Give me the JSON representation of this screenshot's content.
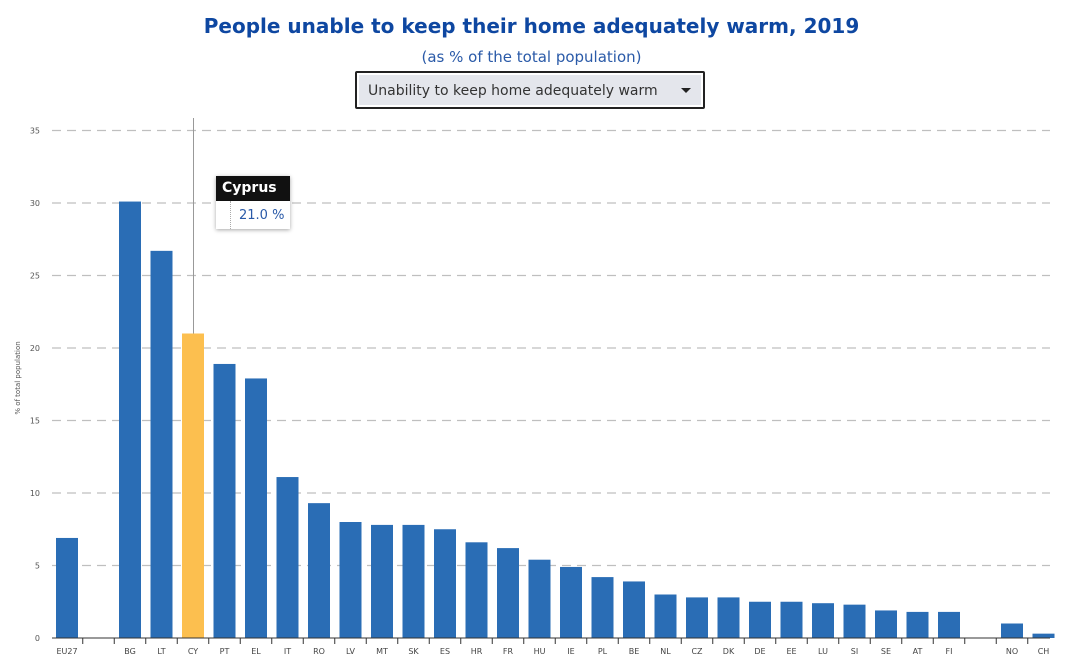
{
  "colors": {
    "bar": "#2a6db5",
    "highlight": "#fcbf4f",
    "grid": "#bfbfbf",
    "title": "#0e47a1"
  },
  "dropdown": {
    "selected": "Unability to keep home adequately warm",
    "icon": "caret-down-icon"
  },
  "tooltip": {
    "country": "Cyprus",
    "value": "21.0 %"
  },
  "chart_data": {
    "type": "bar",
    "title": "People unable to keep their home adequately warm, 2019",
    "subtitle": "(as % of the total population)",
    "xlabel": "",
    "ylabel": "% of total population",
    "ylim": [
      0,
      35
    ],
    "yticks": [
      0,
      5,
      10,
      15,
      20,
      25,
      30,
      35
    ],
    "grid": true,
    "highlighted": "CY",
    "categories": [
      "EU27",
      "",
      "BG",
      "LT",
      "CY",
      "PT",
      "EL",
      "IT",
      "RO",
      "LV",
      "MT",
      "SK",
      "ES",
      "HR",
      "FR",
      "HU",
      "IE",
      "PL",
      "BE",
      "NL",
      "CZ",
      "DK",
      "DE",
      "EE",
      "LU",
      "SI",
      "SE",
      "AT",
      "FI",
      "",
      "NO",
      "CH"
    ],
    "values": [
      6.9,
      null,
      30.1,
      26.7,
      21.0,
      18.9,
      17.9,
      11.1,
      9.3,
      8.0,
      7.8,
      7.8,
      7.5,
      6.6,
      6.2,
      5.4,
      4.9,
      4.2,
      3.9,
      3.0,
      2.8,
      2.8,
      2.5,
      2.5,
      2.4,
      2.3,
      1.9,
      1.8,
      1.8,
      null,
      1.0,
      0.3
    ]
  }
}
